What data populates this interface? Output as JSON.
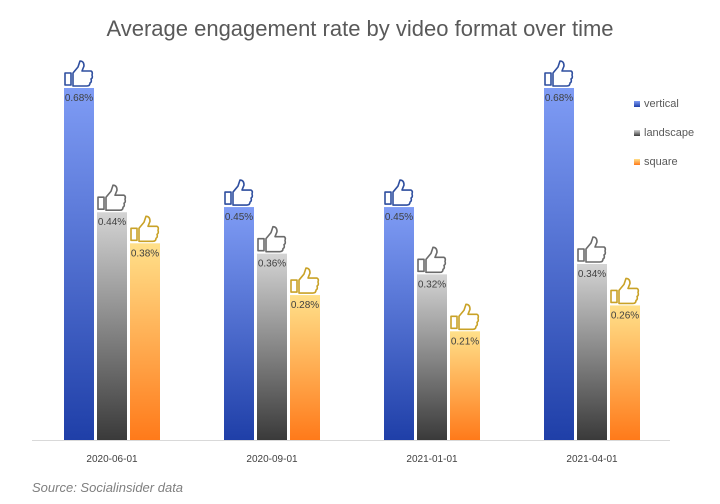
{
  "chart_data": {
    "type": "bar",
    "title": "Average engagement rate by video format over time",
    "categories": [
      "2020-06-01",
      "2020-09-01",
      "2021-01-01",
      "2021-04-01"
    ],
    "series": [
      {
        "name": "vertical",
        "values": [
          0.68,
          0.45,
          0.45,
          0.68
        ],
        "labels": [
          "0.68%",
          "0.45%",
          "0.45%",
          "0.68%"
        ],
        "color_top": "#7f9cf5",
        "color_bottom": "#1f3fa8",
        "icon_color": "#2f4f9f"
      },
      {
        "name": "landscape",
        "values": [
          0.44,
          0.36,
          0.32,
          0.34
        ],
        "labels": [
          "0.44%",
          "0.36%",
          "0.32%",
          "0.34%"
        ],
        "color_top": "#d4d4d4",
        "color_bottom": "#3a3a3a",
        "icon_color": "#6b6b6b"
      },
      {
        "name": "square",
        "values": [
          0.38,
          0.28,
          0.21,
          0.26
        ],
        "labels": [
          "0.38%",
          "0.28%",
          "0.21%",
          "0.26%"
        ],
        "color_top": "#ffe08a",
        "color_bottom": "#ff7a1a",
        "icon_color": "#c9a227"
      }
    ],
    "xlabel": "",
    "ylabel": "",
    "ylim": [
      0,
      0.7
    ],
    "grid": false,
    "legend_placement": "top-right",
    "icon": "thumbs-up-icon"
  },
  "source": "Source: Socialinsider data"
}
